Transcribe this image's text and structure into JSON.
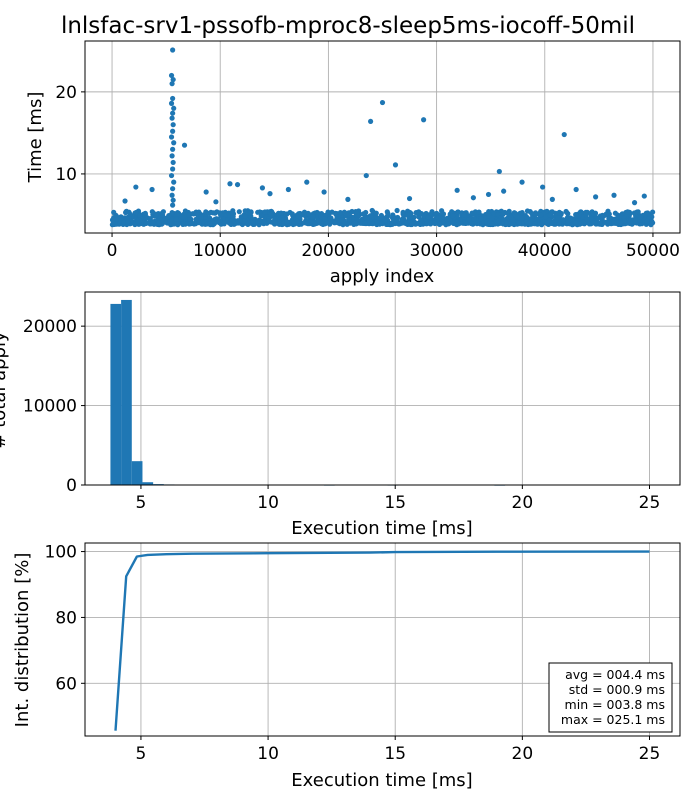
{
  "figure": {
    "title": "lnlsfac-srv1-pssofb-mproc8-sleep5ms-iocoff-50mil",
    "series_color": "#1f77b4"
  },
  "chart_data": [
    {
      "type": "scatter",
      "xlabel": "apply index",
      "ylabel": "Time [ms]",
      "xlim": [
        -2500,
        52500
      ],
      "ylim": [
        2.8,
        26.2
      ],
      "xticks": [
        0,
        10000,
        20000,
        30000,
        40000,
        50000
      ],
      "yticks": [
        10,
        20
      ],
      "grid": true,
      "baseline_band": {
        "x_range": [
          0,
          50000
        ],
        "y_range": [
          3.8,
          5.6
        ],
        "typical": 4.4
      },
      "points": [
        {
          "x": 5600,
          "y": 25.1
        },
        {
          "x": 5500,
          "y": 22.0
        },
        {
          "x": 5650,
          "y": 21.5
        },
        {
          "x": 5550,
          "y": 21.0
        },
        {
          "x": 5600,
          "y": 19.2
        },
        {
          "x": 5500,
          "y": 18.6
        },
        {
          "x": 5700,
          "y": 18.0
        },
        {
          "x": 5600,
          "y": 17.4
        },
        {
          "x": 5550,
          "y": 16.8
        },
        {
          "x": 5650,
          "y": 16.0
        },
        {
          "x": 5600,
          "y": 15.2
        },
        {
          "x": 5500,
          "y": 14.5
        },
        {
          "x": 5700,
          "y": 13.8
        },
        {
          "x": 5600,
          "y": 13.0
        },
        {
          "x": 5550,
          "y": 12.2
        },
        {
          "x": 5650,
          "y": 11.4
        },
        {
          "x": 5600,
          "y": 10.6
        },
        {
          "x": 5500,
          "y": 9.8
        },
        {
          "x": 5700,
          "y": 9.0
        },
        {
          "x": 5600,
          "y": 8.2
        },
        {
          "x": 5550,
          "y": 7.4
        },
        {
          "x": 5650,
          "y": 6.8
        },
        {
          "x": 5600,
          "y": 6.2
        },
        {
          "x": 6700,
          "y": 13.5
        },
        {
          "x": 25000,
          "y": 18.7
        },
        {
          "x": 23900,
          "y": 16.4
        },
        {
          "x": 28800,
          "y": 16.6
        },
        {
          "x": 41800,
          "y": 14.8
        },
        {
          "x": 26200,
          "y": 11.1
        },
        {
          "x": 35800,
          "y": 10.3
        },
        {
          "x": 23500,
          "y": 9.8
        },
        {
          "x": 37900,
          "y": 9.0
        },
        {
          "x": 39800,
          "y": 8.4
        },
        {
          "x": 42900,
          "y": 8.1
        },
        {
          "x": 2200,
          "y": 8.4
        },
        {
          "x": 3700,
          "y": 8.1
        },
        {
          "x": 10900,
          "y": 8.8
        },
        {
          "x": 11600,
          "y": 8.7
        },
        {
          "x": 13900,
          "y": 8.3
        },
        {
          "x": 16300,
          "y": 8.1
        },
        {
          "x": 18000,
          "y": 9.0
        },
        {
          "x": 19600,
          "y": 7.8
        },
        {
          "x": 8700,
          "y": 7.8
        },
        {
          "x": 14600,
          "y": 7.6
        },
        {
          "x": 31900,
          "y": 8.0
        },
        {
          "x": 34800,
          "y": 7.5
        },
        {
          "x": 44700,
          "y": 7.2
        },
        {
          "x": 46400,
          "y": 7.4
        },
        {
          "x": 49200,
          "y": 7.3
        },
        {
          "x": 27500,
          "y": 7.0
        },
        {
          "x": 33400,
          "y": 7.1
        },
        {
          "x": 21800,
          "y": 6.9
        },
        {
          "x": 9600,
          "y": 6.6
        },
        {
          "x": 1200,
          "y": 6.7
        },
        {
          "x": 40700,
          "y": 6.9
        },
        {
          "x": 48300,
          "y": 6.5
        },
        {
          "x": 36200,
          "y": 7.9
        }
      ]
    },
    {
      "type": "bar",
      "xlabel": "Execution time [ms]",
      "ylabel": "# total apply",
      "xlim": [
        2.8,
        26.2
      ],
      "ylim": [
        0,
        24300
      ],
      "xticks": [
        5,
        10,
        15,
        20,
        25
      ],
      "yticks": [
        0,
        10000,
        20000
      ],
      "grid": true,
      "bin_width": 0.42,
      "bins": [
        {
          "x0": 3.8,
          "count": 22800
        },
        {
          "x0": 4.22,
          "count": 23300
        },
        {
          "x0": 4.64,
          "count": 3000
        },
        {
          "x0": 5.06,
          "count": 350
        },
        {
          "x0": 5.48,
          "count": 110
        },
        {
          "x0": 5.9,
          "count": 70
        },
        {
          "x0": 6.32,
          "count": 60
        },
        {
          "x0": 12.2,
          "count": 25
        },
        {
          "x0": 14.7,
          "count": 30
        },
        {
          "x0": 18.9,
          "count": 20
        }
      ]
    },
    {
      "type": "line",
      "xlabel": "Execution time [ms]",
      "ylabel": "Int. distribution [%]",
      "xlim": [
        2.8,
        26.2
      ],
      "ylim": [
        44,
        102.6
      ],
      "xticks": [
        5,
        10,
        15,
        20,
        25
      ],
      "yticks": [
        60,
        80,
        100
      ],
      "grid": true,
      "x": [
        4.0,
        4.42,
        4.84,
        5.26,
        6.0,
        7.0,
        10.0,
        14.0,
        15.0,
        19.0,
        25.0
      ],
      "y": [
        45.6,
        92.5,
        98.5,
        99.0,
        99.2,
        99.35,
        99.5,
        99.7,
        99.85,
        99.95,
        100.0
      ],
      "stats": {
        "lines": [
          "avg = 004.4 ms",
          "std = 000.9 ms",
          "min = 003.8 ms",
          "max = 025.1 ms"
        ],
        "placement": "lower-right"
      }
    }
  ]
}
